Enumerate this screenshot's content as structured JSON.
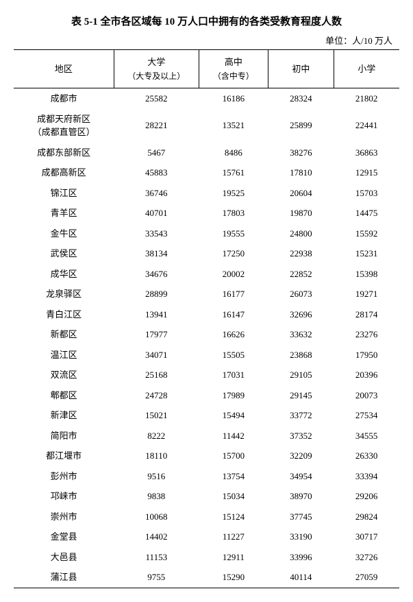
{
  "title": "表 5-1 全市各区域每 10 万人口中拥有的各类受教育程度人数",
  "unit_label": "单位：人/10 万人",
  "columns": {
    "region": "地区",
    "university": "大学",
    "university_sub": "（大专及以上）",
    "highschool": "高中",
    "highschool_sub": "（含中专）",
    "junior": "初中",
    "primary": "小学"
  },
  "rows": [
    {
      "region": "成都市",
      "sub": "",
      "c1": "25582",
      "c2": "16186",
      "c3": "28324",
      "c4": "21802"
    },
    {
      "region": "成都天府新区",
      "sub": "（成都直管区）",
      "c1": "28221",
      "c2": "13521",
      "c3": "25899",
      "c4": "22441"
    },
    {
      "region": "成都东部新区",
      "sub": "",
      "c1": "5467",
      "c2": "8486",
      "c3": "38276",
      "c4": "36863"
    },
    {
      "region": "成都高新区",
      "sub": "",
      "c1": "45883",
      "c2": "15761",
      "c3": "17810",
      "c4": "12915"
    },
    {
      "region": "锦江区",
      "sub": "",
      "c1": "36746",
      "c2": "19525",
      "c3": "20604",
      "c4": "15703"
    },
    {
      "region": "青羊区",
      "sub": "",
      "c1": "40701",
      "c2": "17803",
      "c3": "19870",
      "c4": "14475"
    },
    {
      "region": "金牛区",
      "sub": "",
      "c1": "33543",
      "c2": "19555",
      "c3": "24800",
      "c4": "15592"
    },
    {
      "region": "武侯区",
      "sub": "",
      "c1": "38134",
      "c2": "17250",
      "c3": "22938",
      "c4": "15231"
    },
    {
      "region": "成华区",
      "sub": "",
      "c1": "34676",
      "c2": "20002",
      "c3": "22852",
      "c4": "15398"
    },
    {
      "region": "龙泉驿区",
      "sub": "",
      "c1": "28899",
      "c2": "16177",
      "c3": "26073",
      "c4": "19271"
    },
    {
      "region": "青白江区",
      "sub": "",
      "c1": "13941",
      "c2": "16147",
      "c3": "32696",
      "c4": "28174"
    },
    {
      "region": "新都区",
      "sub": "",
      "c1": "17977",
      "c2": "16626",
      "c3": "33632",
      "c4": "23276"
    },
    {
      "region": "温江区",
      "sub": "",
      "c1": "34071",
      "c2": "15505",
      "c3": "23868",
      "c4": "17950"
    },
    {
      "region": "双流区",
      "sub": "",
      "c1": "25168",
      "c2": "17031",
      "c3": "29105",
      "c4": "20396"
    },
    {
      "region": "郫都区",
      "sub": "",
      "c1": "24728",
      "c2": "17989",
      "c3": "29145",
      "c4": "20073"
    },
    {
      "region": "新津区",
      "sub": "",
      "c1": "15021",
      "c2": "15494",
      "c3": "33772",
      "c4": "27534"
    },
    {
      "region": "简阳市",
      "sub": "",
      "c1": "8222",
      "c2": "11442",
      "c3": "37352",
      "c4": "34555"
    },
    {
      "region": "都江堰市",
      "sub": "",
      "c1": "18110",
      "c2": "15700",
      "c3": "32209",
      "c4": "26330"
    },
    {
      "region": "彭州市",
      "sub": "",
      "c1": "9516",
      "c2": "13754",
      "c3": "34954",
      "c4": "33394"
    },
    {
      "region": "邛崃市",
      "sub": "",
      "c1": "9838",
      "c2": "15034",
      "c3": "38970",
      "c4": "29206"
    },
    {
      "region": "崇州市",
      "sub": "",
      "c1": "10068",
      "c2": "15124",
      "c3": "37745",
      "c4": "29824"
    },
    {
      "region": "金堂县",
      "sub": "",
      "c1": "14402",
      "c2": "11227",
      "c3": "33190",
      "c4": "30717"
    },
    {
      "region": "大邑县",
      "sub": "",
      "c1": "11153",
      "c2": "12911",
      "c3": "33996",
      "c4": "32726"
    },
    {
      "region": "蒲江县",
      "sub": "",
      "c1": "9755",
      "c2": "15290",
      "c3": "40114",
      "c4": "27059"
    }
  ],
  "style": {
    "font_family": "SimSun",
    "title_fontsize": 15,
    "body_fontsize": 13,
    "background_color": "#ffffff",
    "text_color": "#000000",
    "border_color": "#000000",
    "col_widths_pct": [
      26,
      22,
      18,
      17,
      17
    ]
  }
}
